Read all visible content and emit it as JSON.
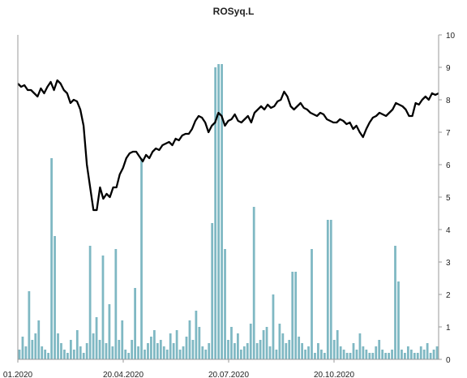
{
  "chart_data": {
    "type": "line",
    "title": "ROSyq.L",
    "xlabel": "",
    "ylabel": "",
    "x_ticks": [
      "01.2020",
      "20.04.2020",
      "20.07.2020",
      "20.10.2020"
    ],
    "y_ticks": [
      "0",
      "1",
      "2",
      "3",
      "4",
      "5",
      "6",
      "7",
      "8",
      "9",
      "10"
    ],
    "ylim": [
      0,
      10
    ],
    "y_axis_position": "right",
    "grid": false,
    "legend": "none",
    "colors": {
      "line": "#000000",
      "volume": "#7fb8c3",
      "axis": "#999999"
    },
    "series": [
      {
        "kind": "line",
        "values": [
          8.5,
          8.4,
          8.45,
          8.3,
          8.3,
          8.2,
          8.1,
          8.35,
          8.2,
          8.4,
          8.55,
          8.3,
          8.6,
          8.5,
          8.3,
          8.2,
          7.9,
          8.0,
          7.95,
          7.7,
          7.2,
          6.0,
          5.3,
          4.6,
          4.6,
          5.3,
          4.95,
          5.1,
          5.0,
          5.3,
          5.3,
          5.7,
          5.9,
          6.2,
          6.35,
          6.4,
          6.4,
          6.25,
          6.1,
          6.3,
          6.2,
          6.4,
          6.5,
          6.45,
          6.6,
          6.65,
          6.7,
          6.6,
          6.8,
          6.75,
          6.9,
          6.95,
          6.95,
          7.1,
          7.35,
          7.5,
          7.45,
          7.3,
          7.0,
          7.2,
          7.3,
          7.6,
          7.5,
          7.2,
          7.35,
          7.4,
          7.55,
          7.35,
          7.3,
          7.4,
          7.5,
          7.3,
          7.6,
          7.7,
          7.8,
          7.7,
          7.85,
          7.75,
          7.8,
          7.95,
          8.0,
          8.25,
          8.1,
          7.8,
          7.7,
          7.8,
          7.9,
          7.75,
          7.7,
          7.6,
          7.55,
          7.5,
          7.6,
          7.55,
          7.4,
          7.35,
          7.3,
          7.3,
          7.4,
          7.35,
          7.25,
          7.3,
          7.1,
          7.2,
          7.0,
          6.85,
          7.1,
          7.3,
          7.45,
          7.5,
          7.6,
          7.55,
          7.5,
          7.6,
          7.7,
          7.9,
          7.85,
          7.8,
          7.7,
          7.5,
          7.5,
          7.9,
          7.85,
          8.0,
          8.1,
          8.0,
          8.2,
          8.15,
          8.2
        ]
      },
      {
        "kind": "bar",
        "values": [
          0.3,
          0.7,
          0.4,
          2.1,
          0.6,
          0.8,
          1.2,
          0.4,
          0.3,
          0.2,
          6.2,
          3.8,
          0.8,
          0.5,
          0.3,
          0.2,
          0.6,
          0.3,
          0.9,
          0.4,
          0.2,
          0.5,
          3.5,
          0.8,
          1.3,
          0.6,
          3.2,
          0.5,
          1.7,
          0.4,
          3.4,
          0.6,
          1.2,
          0.3,
          0.2,
          0.6,
          2.2,
          0.4,
          6.2,
          0.3,
          0.5,
          0.7,
          0.9,
          0.5,
          0.6,
          0.4,
          0.3,
          0.8,
          0.5,
          0.9,
          0.3,
          0.4,
          0.7,
          1.2,
          0.6,
          1.5,
          1.0,
          0.4,
          0.3,
          0.5,
          4.2,
          9.0,
          9.1,
          9.1,
          3.4,
          0.6,
          1.0,
          0.5,
          0.8,
          0.3,
          0.4,
          0.5,
          1.1,
          4.7,
          0.5,
          0.6,
          0.9,
          1.0,
          0.4,
          2.0,
          0.3,
          1.1,
          0.8,
          0.5,
          0.6,
          2.7,
          2.7,
          0.7,
          0.5,
          0.3,
          0.4,
          3.4,
          0.2,
          0.5,
          0.3,
          0.2,
          4.3,
          4.3,
          0.6,
          0.9,
          0.4,
          0.3,
          0.2,
          0.2,
          0.5,
          0.3,
          0.8,
          0.4,
          0.3,
          0.2,
          0.2,
          0.4,
          0.6,
          0.3,
          0.2,
          0.2,
          0.3,
          3.5,
          2.4,
          0.3,
          0.2,
          0.4,
          0.3,
          0.2,
          0.2,
          0.4,
          0.3,
          0.5,
          0.2,
          0.3,
          0.4
        ]
      }
    ]
  }
}
